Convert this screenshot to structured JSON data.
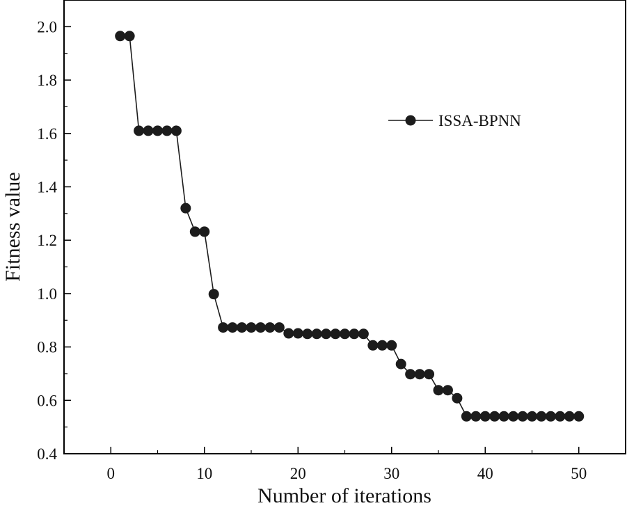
{
  "chart_data": {
    "type": "line",
    "title": "",
    "xlabel": "Number of iterations",
    "ylabel": "Fitness value",
    "xlim": [
      -5,
      55
    ],
    "ylim": [
      0.4,
      2.1
    ],
    "x_ticks": [
      0,
      10,
      20,
      30,
      40,
      50
    ],
    "y_ticks": [
      0.4,
      0.6,
      0.8,
      1.0,
      1.2,
      1.4,
      1.6,
      1.8,
      2.0
    ],
    "x_tick_labels": [
      "0",
      "10",
      "20",
      "30",
      "40",
      "50"
    ],
    "y_tick_labels": [
      "0.4",
      "0.6",
      "0.8",
      "1.0",
      "1.2",
      "1.4",
      "1.6",
      "1.8",
      "2.0"
    ],
    "grid": false,
    "legend_position": "top-right",
    "colors": {
      "series": "#1c1c1c",
      "axis": "#000000"
    },
    "series": [
      {
        "name": "ISSA-BPNN",
        "x": [
          1,
          2,
          3,
          4,
          5,
          6,
          7,
          8,
          9,
          10,
          11,
          12,
          13,
          14,
          15,
          16,
          17,
          18,
          19,
          20,
          21,
          22,
          23,
          24,
          25,
          26,
          27,
          28,
          29,
          30,
          31,
          32,
          33,
          34,
          35,
          36,
          37,
          38,
          39,
          40,
          41,
          42,
          43,
          44,
          45,
          46,
          47,
          48,
          49,
          50
        ],
        "y": [
          1.965,
          1.965,
          1.61,
          1.61,
          1.61,
          1.61,
          1.61,
          1.32,
          1.232,
          1.232,
          0.998,
          0.873,
          0.873,
          0.873,
          0.873,
          0.873,
          0.873,
          0.873,
          0.851,
          0.851,
          0.849,
          0.849,
          0.849,
          0.849,
          0.849,
          0.849,
          0.849,
          0.806,
          0.806,
          0.806,
          0.736,
          0.698,
          0.698,
          0.698,
          0.638,
          0.638,
          0.608,
          0.54,
          0.54,
          0.54,
          0.54,
          0.54,
          0.54,
          0.54,
          0.54,
          0.54,
          0.54,
          0.54,
          0.54,
          0.54
        ]
      }
    ]
  }
}
